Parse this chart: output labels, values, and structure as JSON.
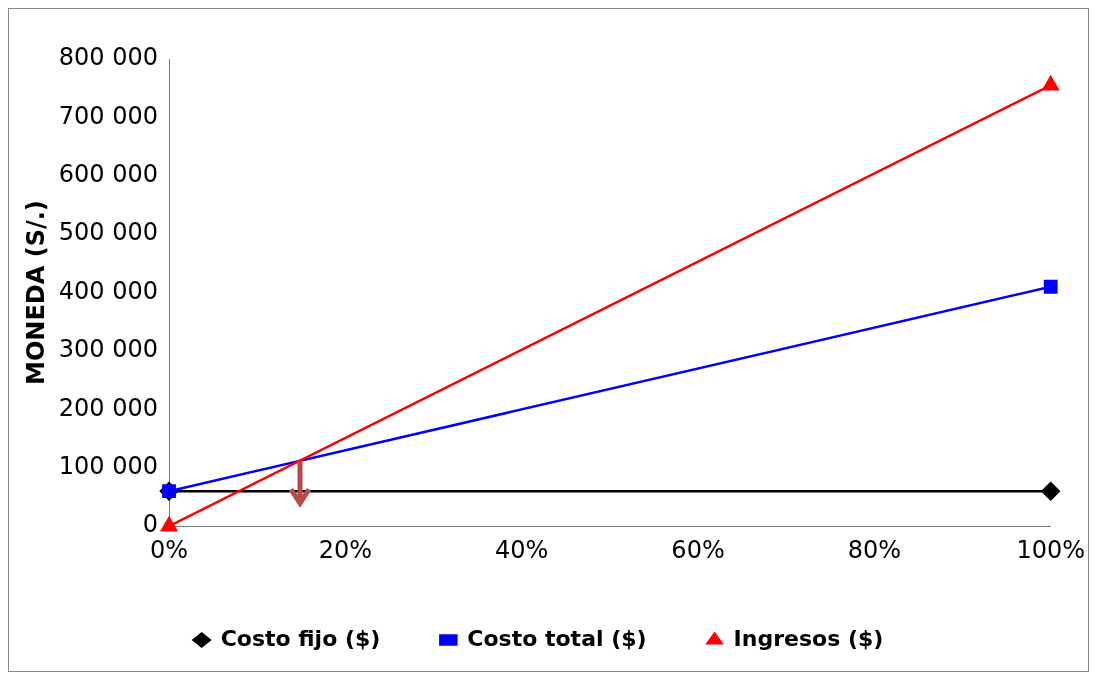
{
  "chart_data": {
    "type": "line",
    "ylabel": "MONEDA (S/.)",
    "x": [
      0,
      100
    ],
    "series": [
      {
        "name": "Costo fijo ($)",
        "color": "#000000",
        "marker": "diamond",
        "values": [
          60000,
          60000
        ]
      },
      {
        "name": "Costo total ($)",
        "color": "#0000ff",
        "marker": "square",
        "values": [
          60000,
          410000
        ]
      },
      {
        "name": "Ingresos ($)",
        "color": "#ff0000",
        "marker": "triangle",
        "values": [
          0,
          755000
        ]
      }
    ],
    "xlim": [
      0,
      100
    ],
    "xticks": [
      {
        "value": 0,
        "label": "0%"
      },
      {
        "value": 20,
        "label": "20%"
      },
      {
        "value": 40,
        "label": "40%"
      },
      {
        "value": 60,
        "label": "60%"
      },
      {
        "value": 80,
        "label": "80%"
      },
      {
        "value": 100,
        "label": "100%"
      }
    ],
    "ylim": [
      0,
      800000
    ],
    "yticks": [
      0,
      {
        "value": 100000,
        "label": "100 000"
      },
      {
        "value": 200000,
        "label": "200 000"
      },
      {
        "value": 300000,
        "label": "300 000"
      },
      {
        "value": 400000,
        "label": "400 000"
      },
      {
        "value": 500000,
        "label": "500 000"
      },
      {
        "value": 600000,
        "label": "600 000"
      },
      {
        "value": 700000,
        "label": "700 000"
      },
      {
        "value": 800000,
        "label": "800 000"
      }
    ],
    "grid": false,
    "legend": "bottom"
  }
}
